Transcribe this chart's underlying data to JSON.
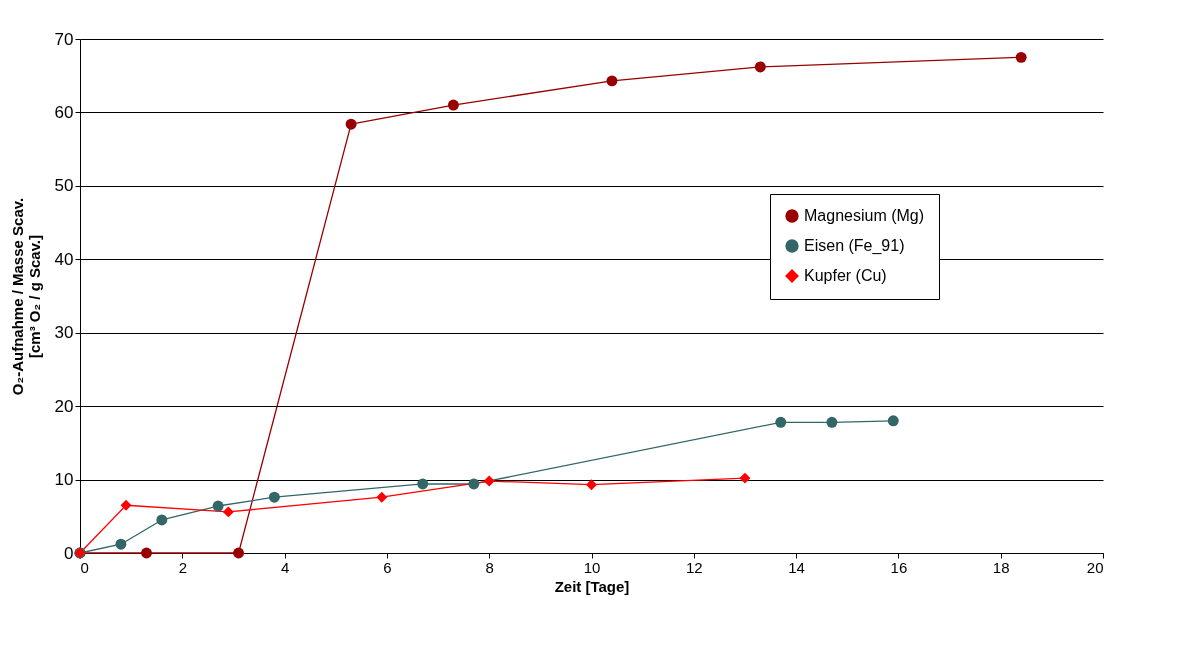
{
  "chart_data": {
    "type": "line",
    "xlabel": "Zeit [Tage]",
    "ylabel": "O₂-Aufnahme / Masse Scav.\n[cm³ O₂ / g Scav.]",
    "xlim": [
      0,
      20
    ],
    "ylim": [
      0,
      70
    ],
    "xticks": [
      0,
      2,
      4,
      6,
      8,
      10,
      12,
      14,
      16,
      18,
      20
    ],
    "yticks": [
      0,
      10,
      20,
      30,
      40,
      50,
      60,
      70
    ],
    "grid": "y",
    "legend": "right",
    "series": [
      {
        "name": "Magnesium (Mg)",
        "color": "#990000",
        "marker": "circle",
        "x": [
          0,
          1.3,
          3.1,
          5.3,
          7.3,
          10.4,
          13.3,
          18.4
        ],
        "values": [
          0,
          0,
          0,
          58.4,
          61,
          64.3,
          66.2,
          67.5
        ]
      },
      {
        "name": "Eisen (Fe_91)",
        "color": "#336666",
        "marker": "circle",
        "x": [
          0,
          0.8,
          1.6,
          2.7,
          3.8,
          6.7,
          7.7,
          13.7,
          14.7,
          15.9
        ],
        "values": [
          0,
          1.2,
          4.5,
          6.4,
          7.6,
          9.4,
          9.4,
          17.8,
          17.8,
          18
        ]
      },
      {
        "name": "Kupfer (Cu)",
        "color": "#ff0000",
        "marker": "diamond",
        "x": [
          0,
          0.9,
          2.9,
          5.9,
          8,
          10,
          13
        ],
        "values": [
          0,
          6.5,
          5.6,
          7.6,
          9.8,
          9.3,
          10.2
        ]
      }
    ]
  }
}
